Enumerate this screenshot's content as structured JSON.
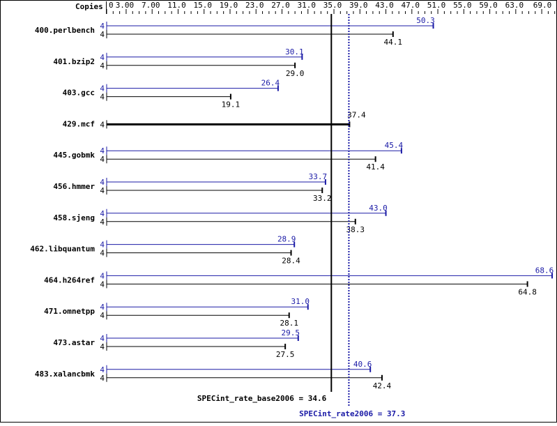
{
  "chart_data": {
    "type": "bar",
    "orientation": "horizontal",
    "axis_label": "Copies",
    "xlim": [
      0,
      69
    ],
    "tick_labels": [
      "0",
      "3.00",
      "7.00",
      "11.0",
      "15.0",
      "19.0",
      "23.0",
      "27.0",
      "31.0",
      "35.0",
      "39.0",
      "43.0",
      "47.0",
      "51.0",
      "55.0",
      "59.0",
      "63.0",
      "69.0"
    ],
    "tick_values": [
      0,
      3,
      7,
      11,
      15,
      19,
      23,
      27,
      31,
      35,
      39,
      43,
      47,
      51,
      55,
      59,
      63,
      69
    ],
    "colors": {
      "peak": "#1a1aa6",
      "base": "#000000"
    },
    "benchmarks": [
      {
        "name": "400.perlbench",
        "copies_peak": "4",
        "copies_base": "4",
        "peak": 50.3,
        "base": 44.1
      },
      {
        "name": "401.bzip2",
        "copies_peak": "4",
        "copies_base": "4",
        "peak": 30.1,
        "base": 29.0
      },
      {
        "name": "403.gcc",
        "copies_peak": "4",
        "copies_base": "4",
        "peak": 26.4,
        "base": 19.1
      },
      {
        "name": "429.mcf",
        "copies_base": "4",
        "base": 37.4
      },
      {
        "name": "445.gobmk",
        "copies_peak": "4",
        "copies_base": "4",
        "peak": 45.4,
        "base": 41.4
      },
      {
        "name": "456.hmmer",
        "copies_peak": "4",
        "copies_base": "4",
        "peak": 33.7,
        "base": 33.2
      },
      {
        "name": "458.sjeng",
        "copies_peak": "4",
        "copies_base": "4",
        "peak": 43.0,
        "base": 38.3
      },
      {
        "name": "462.libquantum",
        "copies_peak": "4",
        "copies_base": "4",
        "peak": 28.9,
        "base": 28.4
      },
      {
        "name": "464.h264ref",
        "copies_peak": "4",
        "copies_base": "4",
        "peak": 68.6,
        "base": 64.8
      },
      {
        "name": "471.omnetpp",
        "copies_peak": "4",
        "copies_base": "4",
        "peak": 31.0,
        "base": 28.1
      },
      {
        "name": "473.astar",
        "copies_peak": "4",
        "copies_base": "4",
        "peak": 29.5,
        "base": 27.5
      },
      {
        "name": "483.xalancbmk",
        "copies_peak": "4",
        "copies_base": "4",
        "peak": 40.6,
        "base": 42.4
      }
    ],
    "summary": {
      "base_label": "SPECint_rate_base2006 = 34.6",
      "base_value": 34.6,
      "peak_label": "SPECint_rate2006 = 37.3",
      "peak_value": 37.3
    }
  }
}
